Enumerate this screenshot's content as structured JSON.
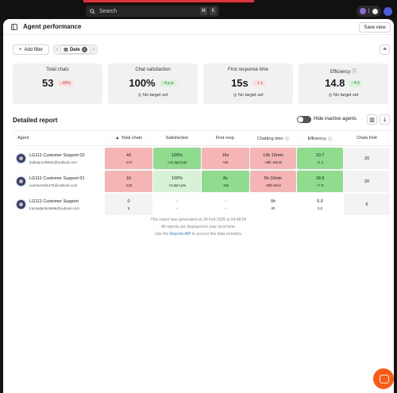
{
  "topbar": {
    "search_label": "Search",
    "kbd1": "⌘",
    "kbd2": "K"
  },
  "header": {
    "title": "Agent performance",
    "save_view": "Save view"
  },
  "filters": {
    "add_filter": "Add filter",
    "date_label": "Date",
    "date_count": "2"
  },
  "cards": [
    {
      "label": "Total chats",
      "value": "53",
      "chip": "83%",
      "chip_dir": "down",
      "target": ""
    },
    {
      "label": "Chat satisfaction",
      "value": "100%",
      "chip": "8 p.p.",
      "chip_dir": "up",
      "target": "No target set"
    },
    {
      "label": "First response time",
      "value": "15s",
      "chip": "1 s",
      "chip_dir": "up-red",
      "target": "No target set"
    },
    {
      "label": "Efficiency",
      "value": "14.8",
      "chip": "4.5",
      "chip_dir": "up",
      "target": "No target set"
    }
  ],
  "report": {
    "title": "Detailed report",
    "hide_inactive": "Hide inactive agents"
  },
  "columns": [
    "Agent",
    "Total chats",
    "Satisfaction",
    "First resp.",
    "Chatting time",
    "Efficiency",
    "Chats limit"
  ],
  "rows": [
    {
      "name": "LG111 Customer Support 02",
      "email": "bulletproof5631@outlook.com",
      "total": "43",
      "total_d": "-147",
      "sat": "100%",
      "sat_d": "+14.3pct pts",
      "resp": "16s",
      "resp_d": "+8s",
      "chat": "13h 10min",
      "chat_d": "-28h 16min",
      "eff": "10.7",
      "eff_d": "+1.1",
      "limit": "20"
    },
    {
      "name": "LG111 Customer Support 01",
      "email": "overturned1475@outlook.com",
      "total": "16",
      "total_d": "-132",
      "sat": "100%",
      "sat_d": "+3.3pct pts",
      "resp": "8s",
      "resp_d": "-10s",
      "chat": "5h 10min",
      "chat_d": "-28h 5min",
      "eff": "18.9",
      "eff_d": "+7.8",
      "limit": "20"
    },
    {
      "name": "LG111 Customer Support",
      "email": "transatlantic6696@outlook.com",
      "total": "0",
      "total_d": "0",
      "sat": "-",
      "sat_d": "-",
      "resp": "-",
      "resp_d": "-",
      "chat": "0h",
      "chat_d": "0h",
      "eff": "0.0",
      "eff_d": "0.0",
      "limit": "6"
    }
  ],
  "footer": {
    "line1": "This report was generated on 24 Feb 2026 at 04:48:54",
    "line2": "All reports are displayed in your local time.",
    "line3_pre": "Use the",
    "line3_link": "Reports API",
    "line3_post": "to access this data remotely."
  }
}
